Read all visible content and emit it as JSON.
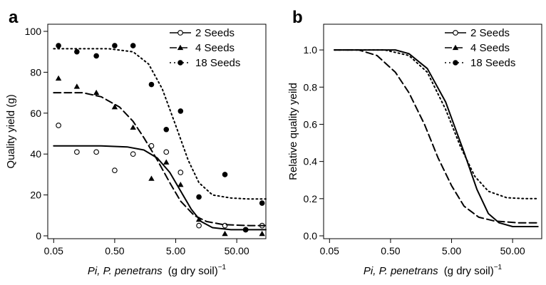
{
  "chart_data": [
    {
      "panel_letter": "a",
      "type": "scatter",
      "xlabel_italic": "Pi, P. penetrans",
      "xlabel_rest": "(g dry soil)",
      "xlabel_exponent": "−1",
      "ylabel": "Quality yield (g)",
      "x_scale": "log",
      "xlim": [
        0.04,
        150
      ],
      "ylim": [
        0,
        100
      ],
      "x_ticks": [
        0.05,
        0.5,
        5,
        50
      ],
      "x_tick_labels": [
        "0.05",
        "0.50",
        "5.00",
        "50.00"
      ],
      "y_ticks": [
        0,
        20,
        40,
        60,
        80,
        100
      ],
      "y_tick_labels": [
        "0",
        "20",
        "40",
        "60",
        "80",
        "100"
      ],
      "legend_position": "top-right",
      "series": [
        {
          "name": "2 Seeds",
          "marker": "open-circle",
          "line_style": "solid",
          "points": [
            [
              0.06,
              54
            ],
            [
              0.12,
              41
            ],
            [
              0.25,
              41
            ],
            [
              0.5,
              32
            ],
            [
              1,
              40
            ],
            [
              2,
              44
            ],
            [
              3.5,
              41
            ],
            [
              6,
              31
            ],
            [
              12,
              5
            ],
            [
              32,
              5
            ],
            [
              70,
              3
            ],
            [
              130,
              5
            ]
          ],
          "curve": [
            [
              0.05,
              44
            ],
            [
              0.3,
              44
            ],
            [
              0.8,
              43.5
            ],
            [
              1.5,
              42
            ],
            [
              2.5,
              38
            ],
            [
              4,
              31
            ],
            [
              6,
              22
            ],
            [
              9,
              13
            ],
            [
              13,
              7
            ],
            [
              20,
              4
            ],
            [
              40,
              3
            ],
            [
              80,
              3
            ],
            [
              150,
              3
            ]
          ]
        },
        {
          "name": "4 Seeds",
          "marker": "filled-triangle",
          "line_style": "dashed",
          "points": [
            [
              0.06,
              77
            ],
            [
              0.12,
              73
            ],
            [
              0.25,
              70
            ],
            [
              0.5,
              63
            ],
            [
              1,
              53
            ],
            [
              2,
              28
            ],
            [
              3.5,
              36
            ],
            [
              6,
              25
            ],
            [
              12,
              8
            ],
            [
              32,
              1
            ],
            [
              130,
              1
            ]
          ],
          "curve": [
            [
              0.05,
              70
            ],
            [
              0.15,
              70
            ],
            [
              0.3,
              68
            ],
            [
              0.6,
              63
            ],
            [
              1,
              56
            ],
            [
              1.5,
              48
            ],
            [
              2.5,
              37
            ],
            [
              4,
              26
            ],
            [
              6,
              17
            ],
            [
              10,
              10
            ],
            [
              16,
              7
            ],
            [
              30,
              5.5
            ],
            [
              80,
              5
            ],
            [
              150,
              5
            ]
          ]
        },
        {
          "name": "18 Seeds",
          "marker": "filled-circle",
          "line_style": "dotted",
          "points": [
            [
              0.06,
              93
            ],
            [
              0.12,
              90
            ],
            [
              0.25,
              88
            ],
            [
              0.5,
              93
            ],
            [
              1,
              93
            ],
            [
              2,
              74
            ],
            [
              3.5,
              52
            ],
            [
              6,
              61
            ],
            [
              12,
              19
            ],
            [
              32,
              30
            ],
            [
              70,
              3
            ],
            [
              130,
              16
            ]
          ],
          "curve": [
            [
              0.05,
              91.5
            ],
            [
              0.4,
              91.5
            ],
            [
              1,
              90
            ],
            [
              1.8,
              84
            ],
            [
              3,
              72
            ],
            [
              5,
              54
            ],
            [
              8,
              37
            ],
            [
              12,
              26
            ],
            [
              20,
              20
            ],
            [
              40,
              18.5
            ],
            [
              80,
              18
            ],
            [
              150,
              18
            ]
          ]
        }
      ]
    },
    {
      "panel_letter": "b",
      "type": "line",
      "xlabel_italic": "Pi, P. penetrans",
      "xlabel_rest": "(g dry soil)",
      "xlabel_exponent": "−1",
      "ylabel": "Relative quality yeild",
      "x_scale": "log",
      "xlim": [
        0.04,
        150
      ],
      "ylim": [
        0,
        1.1
      ],
      "x_ticks": [
        0.05,
        0.5,
        5,
        50
      ],
      "x_tick_labels": [
        "0.05",
        "0.50",
        "5.00",
        "50.00"
      ],
      "y_ticks": [
        0,
        0.2,
        0.4,
        0.6,
        0.8,
        1.0
      ],
      "y_tick_labels": [
        "0.0",
        "0.2",
        "0.4",
        "0.6",
        "0.8",
        "1.0"
      ],
      "legend_position": "top-right",
      "series": [
        {
          "name": "2 Seeds",
          "marker": "open-circle",
          "line_style": "solid",
          "curve": [
            [
              0.06,
              1.0
            ],
            [
              0.6,
              1.0
            ],
            [
              1,
              0.98
            ],
            [
              2,
              0.9
            ],
            [
              4,
              0.72
            ],
            [
              8,
              0.45
            ],
            [
              13,
              0.25
            ],
            [
              20,
              0.12
            ],
            [
              30,
              0.07
            ],
            [
              50,
              0.05
            ],
            [
              100,
              0.05
            ],
            [
              130,
              0.05
            ]
          ]
        },
        {
          "name": "4 Seeds",
          "marker": "filled-triangle",
          "line_style": "dashed",
          "curve": [
            [
              0.06,
              1.0
            ],
            [
              0.15,
              1.0
            ],
            [
              0.3,
              0.97
            ],
            [
              0.6,
              0.88
            ],
            [
              1,
              0.77
            ],
            [
              1.8,
              0.6
            ],
            [
              3,
              0.42
            ],
            [
              5,
              0.27
            ],
            [
              8,
              0.16
            ],
            [
              14,
              0.1
            ],
            [
              25,
              0.08
            ],
            [
              60,
              0.07
            ],
            [
              130,
              0.07
            ]
          ]
        },
        {
          "name": "18 Seeds",
          "marker": "filled-circle",
          "line_style": "dotted",
          "curve": [
            [
              0.06,
              1.0
            ],
            [
              0.4,
              1.0
            ],
            [
              1,
              0.97
            ],
            [
              2,
              0.88
            ],
            [
              4,
              0.68
            ],
            [
              7,
              0.48
            ],
            [
              12,
              0.32
            ],
            [
              20,
              0.24
            ],
            [
              40,
              0.205
            ],
            [
              80,
              0.2
            ],
            [
              130,
              0.2
            ]
          ]
        }
      ]
    }
  ]
}
